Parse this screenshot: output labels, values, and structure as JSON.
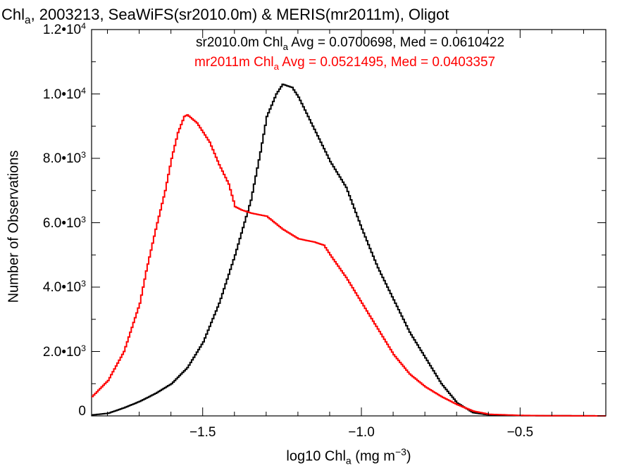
{
  "title": {
    "pre": "Chl",
    "sub": "a",
    "post": ", 2003213, SeaWiFS(sr2010.0m) & MERIS(mr2011m), Oligot"
  },
  "legend": [
    {
      "pre": "sr2010.0m Chl",
      "sub": "a",
      "post": " Avg = 0.0700698, Med = 0.0610422",
      "color": "#000000"
    },
    {
      "pre": "mr2011m Chl",
      "sub": "a",
      "post": " Avg = 0.0521495, Med = 0.0403357",
      "color": "#ff0000"
    }
  ],
  "axes": {
    "ylabel": "Number of Observations",
    "xlabel": {
      "pre": "log10 Chl",
      "sub": "a",
      "mid": " (mg m",
      "sup": "−3",
      "post": ")"
    },
    "yticks": [
      {
        "v": 0,
        "mant": "0",
        "exp": ""
      },
      {
        "v": 2000,
        "mant": "2.0•10",
        "exp": "3"
      },
      {
        "v": 4000,
        "mant": "4.0•10",
        "exp": "3"
      },
      {
        "v": 6000,
        "mant": "6.0•10",
        "exp": "3"
      },
      {
        "v": 8000,
        "mant": "8.0•10",
        "exp": "3"
      },
      {
        "v": 10000,
        "mant": "1.0•10",
        "exp": "4"
      },
      {
        "v": 12000,
        "mant": "1.2•10",
        "exp": "4"
      }
    ],
    "xticks": [
      {
        "v": -1.5,
        "label": "−1.5"
      },
      {
        "v": -1.0,
        "label": "−1.0"
      },
      {
        "v": -0.5,
        "label": "−0.5"
      }
    ]
  },
  "chart_data": {
    "type": "line",
    "style": "step histogram",
    "xlim": [
      -1.85,
      -0.23
    ],
    "ylim": [
      0,
      12000
    ],
    "grid": false,
    "legend_position": "top-right",
    "series": [
      {
        "name": "sr2010.0m",
        "color": "#000000",
        "x": [
          -1.85,
          -1.8,
          -1.75,
          -1.7,
          -1.65,
          -1.6,
          -1.55,
          -1.5,
          -1.45,
          -1.4,
          -1.35,
          -1.32,
          -1.3,
          -1.27,
          -1.25,
          -1.22,
          -1.2,
          -1.15,
          -1.1,
          -1.05,
          -1.0,
          -0.95,
          -0.9,
          -0.85,
          -0.8,
          -0.75,
          -0.7,
          -0.65,
          -0.6,
          -0.5,
          -0.4,
          -0.3,
          -0.23
        ],
        "y": [
          30,
          80,
          250,
          450,
          700,
          1000,
          1500,
          2300,
          3500,
          5000,
          6700,
          8200,
          9300,
          10000,
          10300,
          10200,
          9900,
          8900,
          7900,
          7100,
          5800,
          4600,
          3600,
          2600,
          1800,
          1000,
          400,
          100,
          30,
          10,
          5,
          2,
          0
        ]
      },
      {
        "name": "mr2011m",
        "color": "#ff0000",
        "x": [
          -1.85,
          -1.8,
          -1.75,
          -1.7,
          -1.68,
          -1.65,
          -1.62,
          -1.6,
          -1.58,
          -1.56,
          -1.55,
          -1.52,
          -1.5,
          -1.48,
          -1.45,
          -1.42,
          -1.4,
          -1.38,
          -1.35,
          -1.3,
          -1.25,
          -1.2,
          -1.15,
          -1.12,
          -1.1,
          -1.05,
          -1.0,
          -0.95,
          -0.9,
          -0.85,
          -0.8,
          -0.75,
          -0.7,
          -0.65,
          -0.6,
          -0.5,
          -0.4,
          -0.3,
          -0.23
        ],
        "y": [
          600,
          1100,
          2000,
          3500,
          4500,
          5800,
          7000,
          8000,
          8800,
          9300,
          9350,
          9100,
          8800,
          8500,
          7800,
          7200,
          6500,
          6400,
          6300,
          6200,
          5800,
          5500,
          5400,
          5300,
          5000,
          4300,
          3500,
          2700,
          1900,
          1300,
          900,
          600,
          350,
          150,
          50,
          15,
          5,
          2,
          0
        ]
      }
    ]
  }
}
